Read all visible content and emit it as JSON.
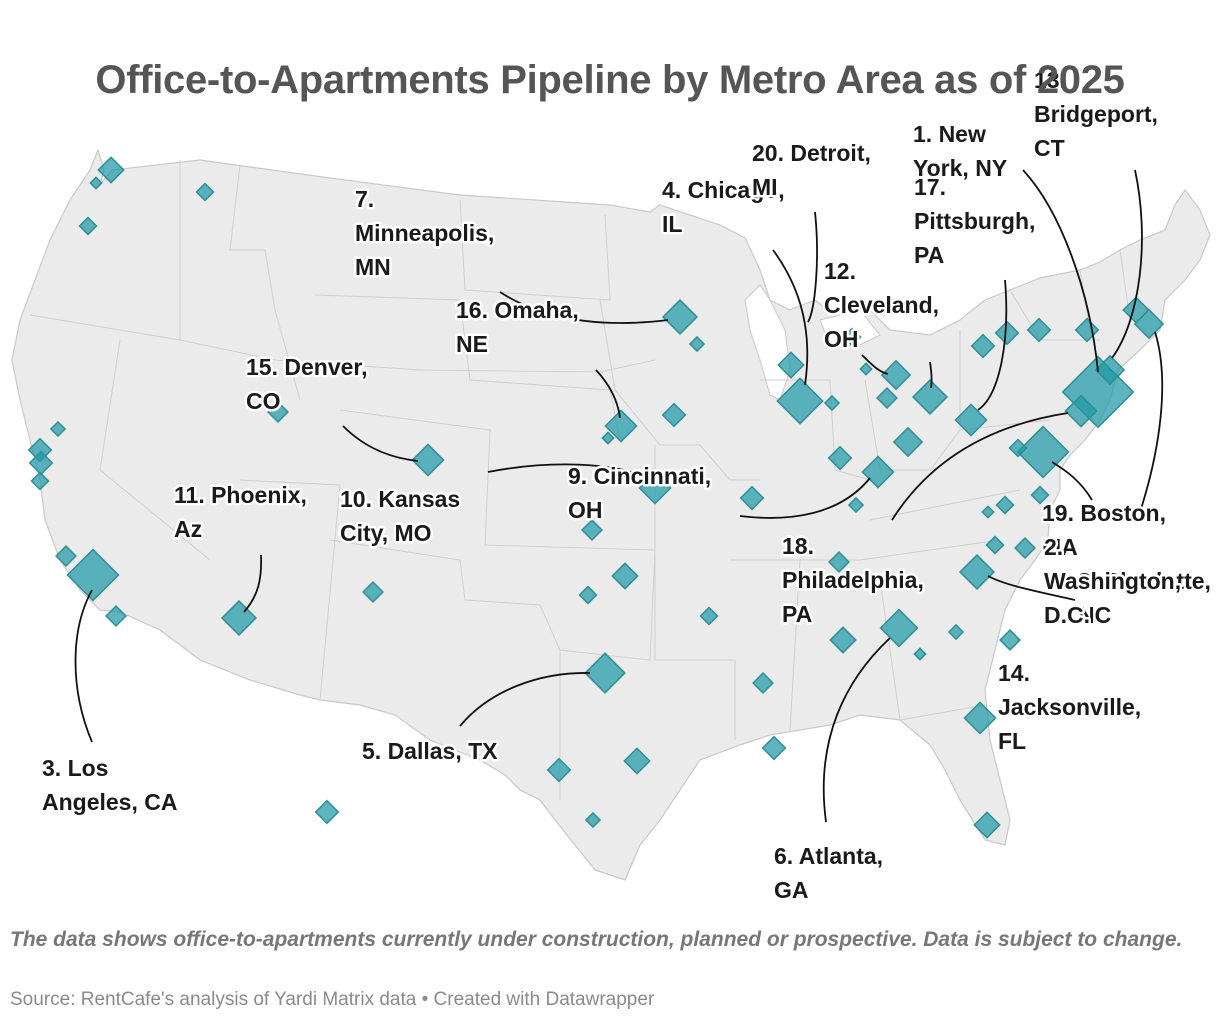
{
  "title": "Office-to-Apartments Pipeline by Metro Area as of 2025",
  "note": "The data shows office-to-apartments currently under construction, planned or prospective. Data is subject to change.",
  "source": "Source: RentCafe's analysis of Yardi Matrix data • Created with Datawrapper",
  "colors": {
    "marker": "#1f9aa6",
    "land": "#ebebeb",
    "stroke": "#c9c9c9"
  },
  "labels": [
    {
      "id": "new-york",
      "lines": [
        "1. New",
        "York, NY"
      ]
    },
    {
      "id": "los-angeles",
      "lines": [
        "3. Los",
        "Angeles, CA"
      ]
    },
    {
      "id": "chicago",
      "lines": [
        "4. Chicago,",
        "IL"
      ]
    },
    {
      "id": "dallas",
      "lines": [
        "5. Dallas, TX"
      ]
    },
    {
      "id": "atlanta",
      "lines": [
        "6. Atlanta,",
        "GA"
      ]
    },
    {
      "id": "minneapolis",
      "lines": [
        "7.",
        "Minneapolis,",
        "MN"
      ]
    },
    {
      "id": "charlotte",
      "lines": [
        "8. Charlotte,",
        "NC"
      ]
    },
    {
      "id": "cincinnati",
      "lines": [
        "9. Cincinnati,",
        "OH"
      ]
    },
    {
      "id": "kansas-city",
      "lines": [
        "10. Kansas",
        "City, MO"
      ]
    },
    {
      "id": "phoenix",
      "lines": [
        "11. Phoenix,",
        "Az"
      ]
    },
    {
      "id": "cleveland",
      "lines": [
        "12.",
        "Cleveland,",
        "OH"
      ]
    },
    {
      "id": "bridgeport",
      "lines": [
        "13.",
        "Bridgeport,",
        "CT"
      ]
    },
    {
      "id": "jacksonville",
      "lines": [
        "14.",
        "Jacksonville,",
        "FL"
      ]
    },
    {
      "id": "denver",
      "lines": [
        "15. Denver,",
        "CO"
      ]
    },
    {
      "id": "omaha",
      "lines": [
        "16. Omaha,",
        "NE"
      ]
    },
    {
      "id": "pittsburgh",
      "lines": [
        "17.",
        "Pittsburgh,",
        "PA"
      ]
    },
    {
      "id": "philadelphia",
      "lines": [
        "18.",
        "Philadelphia,",
        "PA"
      ]
    },
    {
      "id": "boston",
      "lines": [
        "19. Boston,",
        "MA"
      ]
    },
    {
      "id": "detroit",
      "lines": [
        "20. Detroit,",
        "MI"
      ]
    },
    {
      "id": "washington",
      "lines": [
        "2.",
        "Washington,",
        "D.C."
      ]
    }
  ]
}
